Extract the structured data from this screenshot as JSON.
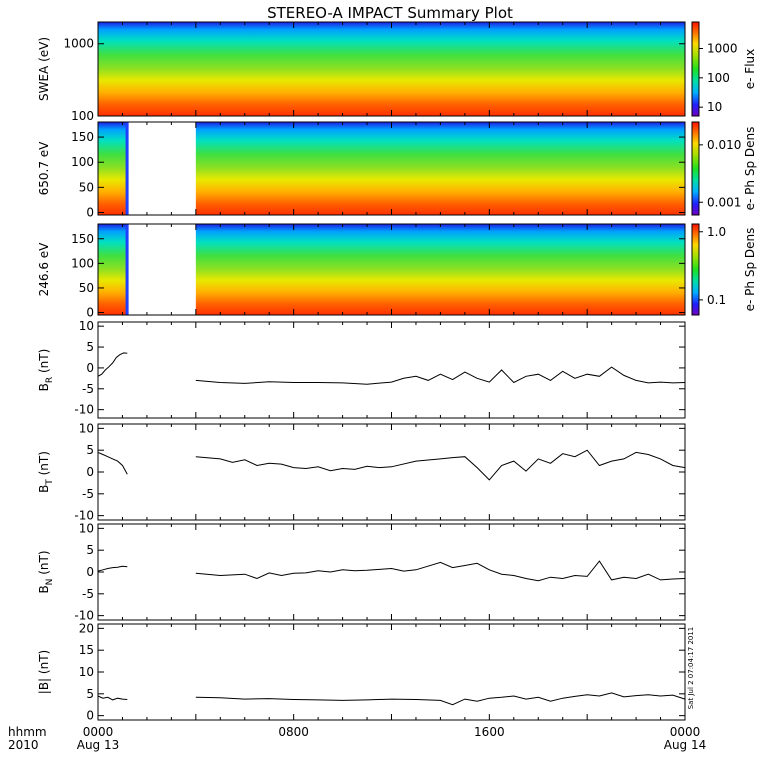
{
  "chart_data": {
    "type": "line",
    "title": "STEREO-A IMPACT Summary Plot",
    "x_footer": {
      "row1_left": "hhmm",
      "row2_left": "2010",
      "ticks": [
        {
          "hours": 0,
          "label": "0000",
          "sub": "Aug 13"
        },
        {
          "hours": 8,
          "label": "0800",
          "sub": ""
        },
        {
          "hours": 16,
          "label": "1600",
          "sub": ""
        },
        {
          "hours": 24,
          "label": "0000",
          "sub": "Aug 14"
        }
      ]
    },
    "xlim_hours": [
      0,
      24
    ],
    "gap_hours": [
      1.25,
      4.0
    ],
    "stamp": "Sat Jul 2 07:04:17 2011",
    "spectrogram_panels": [
      {
        "ylabel": "SWEA (eV)",
        "yscale": "log",
        "ylim": [
          100,
          2000
        ],
        "yticks": [
          100,
          1000
        ],
        "colorbar_label": "e- Flux",
        "colorbar_scale": "log",
        "colorbar_range": [
          5,
          8000
        ],
        "colorbar_ticks": [
          "10",
          "100",
          "1000"
        ],
        "colorbar_tick_values": [
          10,
          100,
          1000
        ],
        "has_gap": false
      },
      {
        "ylabel": "650.7 eV",
        "yscale": "linear",
        "ylim": [
          -5,
          180
        ],
        "yticks": [
          0,
          50,
          100,
          150
        ],
        "colorbar_label": "e- Ph Sp Dens",
        "colorbar_scale": "log",
        "colorbar_range": [
          0.0006,
          0.025
        ],
        "colorbar_ticks": [
          "0.001",
          "0.010"
        ],
        "colorbar_tick_values": [
          0.001,
          0.01
        ],
        "has_gap": true
      },
      {
        "ylabel": "246.6 eV",
        "yscale": "linear",
        "ylim": [
          -5,
          180
        ],
        "yticks": [
          0,
          50,
          100,
          150
        ],
        "colorbar_label": "e- Ph Sp Dens",
        "colorbar_scale": "log",
        "colorbar_range": [
          0.06,
          1.3
        ],
        "colorbar_ticks": [
          "0.1",
          "1.0"
        ],
        "colorbar_tick_values": [
          0.1,
          1.0
        ],
        "has_gap": true
      }
    ],
    "line_panels": [
      {
        "ylabel_main": "B",
        "ylabel_sub": "R",
        "ylabel_unit": " (nT)",
        "ylim": [
          -12,
          11
        ],
        "yticks": [
          -10,
          -5,
          0,
          5,
          10
        ],
        "series": [
          {
            "x": [
              0,
              0.15,
              0.3,
              0.45,
              0.6,
              0.75,
              0.9,
              1.05,
              1.2
            ],
            "y": [
              -2,
              -1.5,
              -0.5,
              0.3,
              1.2,
              2.5,
              3.2,
              3.6,
              3.5
            ]
          },
          {
            "x": [
              4,
              5,
              6,
              7,
              8,
              9,
              10,
              11,
              12,
              12.5,
              13,
              13.5,
              14,
              14.5,
              15,
              15.5,
              16,
              16.5,
              17,
              17.5,
              18,
              18.5,
              19,
              19.5,
              20,
              20.5,
              21,
              21.5,
              22,
              22.5,
              23,
              23.5,
              24
            ],
            "y": [
              -3,
              -3.5,
              -3.7,
              -3.3,
              -3.5,
              -3.5,
              -3.6,
              -3.9,
              -3.4,
              -2.5,
              -2.0,
              -3.0,
              -1.5,
              -2.8,
              -1.0,
              -2.5,
              -3.4,
              -0.5,
              -3.5,
              -2.0,
              -1.5,
              -3.0,
              -0.8,
              -2.5,
              -1.5,
              -2.0,
              0.2,
              -1.8,
              -3.0,
              -3.6,
              -3.4,
              -3.6,
              -3.5
            ]
          }
        ]
      },
      {
        "ylabel_main": "B",
        "ylabel_sub": "T",
        "ylabel_unit": " (nT)",
        "ylim": [
          -11,
          11
        ],
        "yticks": [
          -10,
          -5,
          0,
          5,
          10
        ],
        "series": [
          {
            "x": [
              0,
              0.2,
              0.4,
              0.6,
              0.8,
              1.0,
              1.2
            ],
            "y": [
              4.5,
              4.0,
              3.5,
              3.0,
              2.5,
              1.5,
              -0.5
            ]
          },
          {
            "x": [
              4,
              5,
              5.5,
              6,
              6.5,
              7,
              7.5,
              8,
              8.5,
              9,
              9.5,
              10,
              10.5,
              11,
              11.5,
              12,
              13,
              14,
              14.5,
              15,
              15.5,
              16,
              16.5,
              17,
              17.5,
              18,
              18.5,
              19,
              19.5,
              20,
              20.5,
              21,
              21.5,
              22,
              22.5,
              23,
              23.5,
              24
            ],
            "y": [
              3.5,
              3.0,
              2.2,
              2.8,
              1.5,
              2.0,
              1.8,
              1.0,
              0.8,
              1.2,
              0.3,
              0.8,
              0.6,
              1.3,
              1.0,
              1.2,
              2.5,
              3.0,
              3.3,
              3.5,
              1.0,
              -1.8,
              1.5,
              2.5,
              0.2,
              3.0,
              2.0,
              4.2,
              3.5,
              5.0,
              1.5,
              2.5,
              3.0,
              4.5,
              4.0,
              3.0,
              1.5,
              1.0
            ]
          }
        ]
      },
      {
        "ylabel_main": "B",
        "ylabel_sub": "N",
        "ylabel_unit": " (nT)",
        "ylim": [
          -11,
          11
        ],
        "yticks": [
          -10,
          -5,
          0,
          5,
          10
        ],
        "series": [
          {
            "x": [
              0,
              0.2,
              0.4,
              0.6,
              0.8,
              1.0,
              1.2
            ],
            "y": [
              0.2,
              0.5,
              0.8,
              1.0,
              1.1,
              1.3,
              1.2
            ]
          },
          {
            "x": [
              4,
              5,
              6,
              6.5,
              7,
              7.5,
              8,
              8.5,
              9,
              9.5,
              10,
              10.5,
              11,
              11.5,
              12,
              12.5,
              13,
              14,
              14.5,
              15,
              15.5,
              16,
              16.5,
              17,
              17.5,
              18,
              18.5,
              19,
              19.5,
              20,
              20.5,
              21,
              21.5,
              22,
              22.5,
              23,
              23.5,
              24
            ],
            "y": [
              -0.3,
              -0.8,
              -0.5,
              -1.5,
              -0.2,
              -0.8,
              -0.3,
              -0.2,
              0.3,
              0.0,
              0.5,
              0.3,
              0.4,
              0.6,
              0.8,
              0.2,
              0.5,
              2.2,
              1.0,
              1.5,
              2.0,
              0.5,
              -0.5,
              -0.8,
              -1.5,
              -2.0,
              -1.2,
              -1.5,
              -0.8,
              -1.0,
              2.5,
              -1.8,
              -1.2,
              -1.5,
              -0.5,
              -1.8,
              -1.6,
              -1.5
            ]
          }
        ]
      },
      {
        "ylabel_main": "|B|",
        "ylabel_sub": "",
        "ylabel_unit": " (nT)",
        "ylim": [
          -1,
          21
        ],
        "yticks": [
          0,
          5,
          10,
          15,
          20
        ],
        "series": [
          {
            "x": [
              0,
              0.2,
              0.4,
              0.6,
              0.8,
              1.0,
              1.2
            ],
            "y": [
              4.5,
              4.0,
              4.2,
              3.6,
              4.0,
              3.8,
              3.7
            ]
          },
          {
            "x": [
              4,
              5,
              6,
              7,
              8,
              9,
              10,
              11,
              12,
              13,
              14,
              14.5,
              15,
              15.5,
              16,
              16.5,
              17,
              17.5,
              18,
              18.5,
              19,
              19.5,
              20,
              20.5,
              21,
              21.5,
              22,
              22.5,
              23,
              23.5,
              24
            ],
            "y": [
              4.2,
              4.1,
              3.8,
              3.9,
              3.7,
              3.6,
              3.5,
              3.6,
              3.8,
              3.7,
              3.5,
              2.5,
              3.8,
              3.3,
              4.0,
              4.2,
              4.5,
              3.8,
              4.2,
              3.3,
              4.0,
              4.4,
              4.8,
              4.5,
              5.2,
              4.3,
              4.6,
              4.8,
              4.5,
              4.7,
              3.8
            ]
          }
        ]
      }
    ]
  }
}
